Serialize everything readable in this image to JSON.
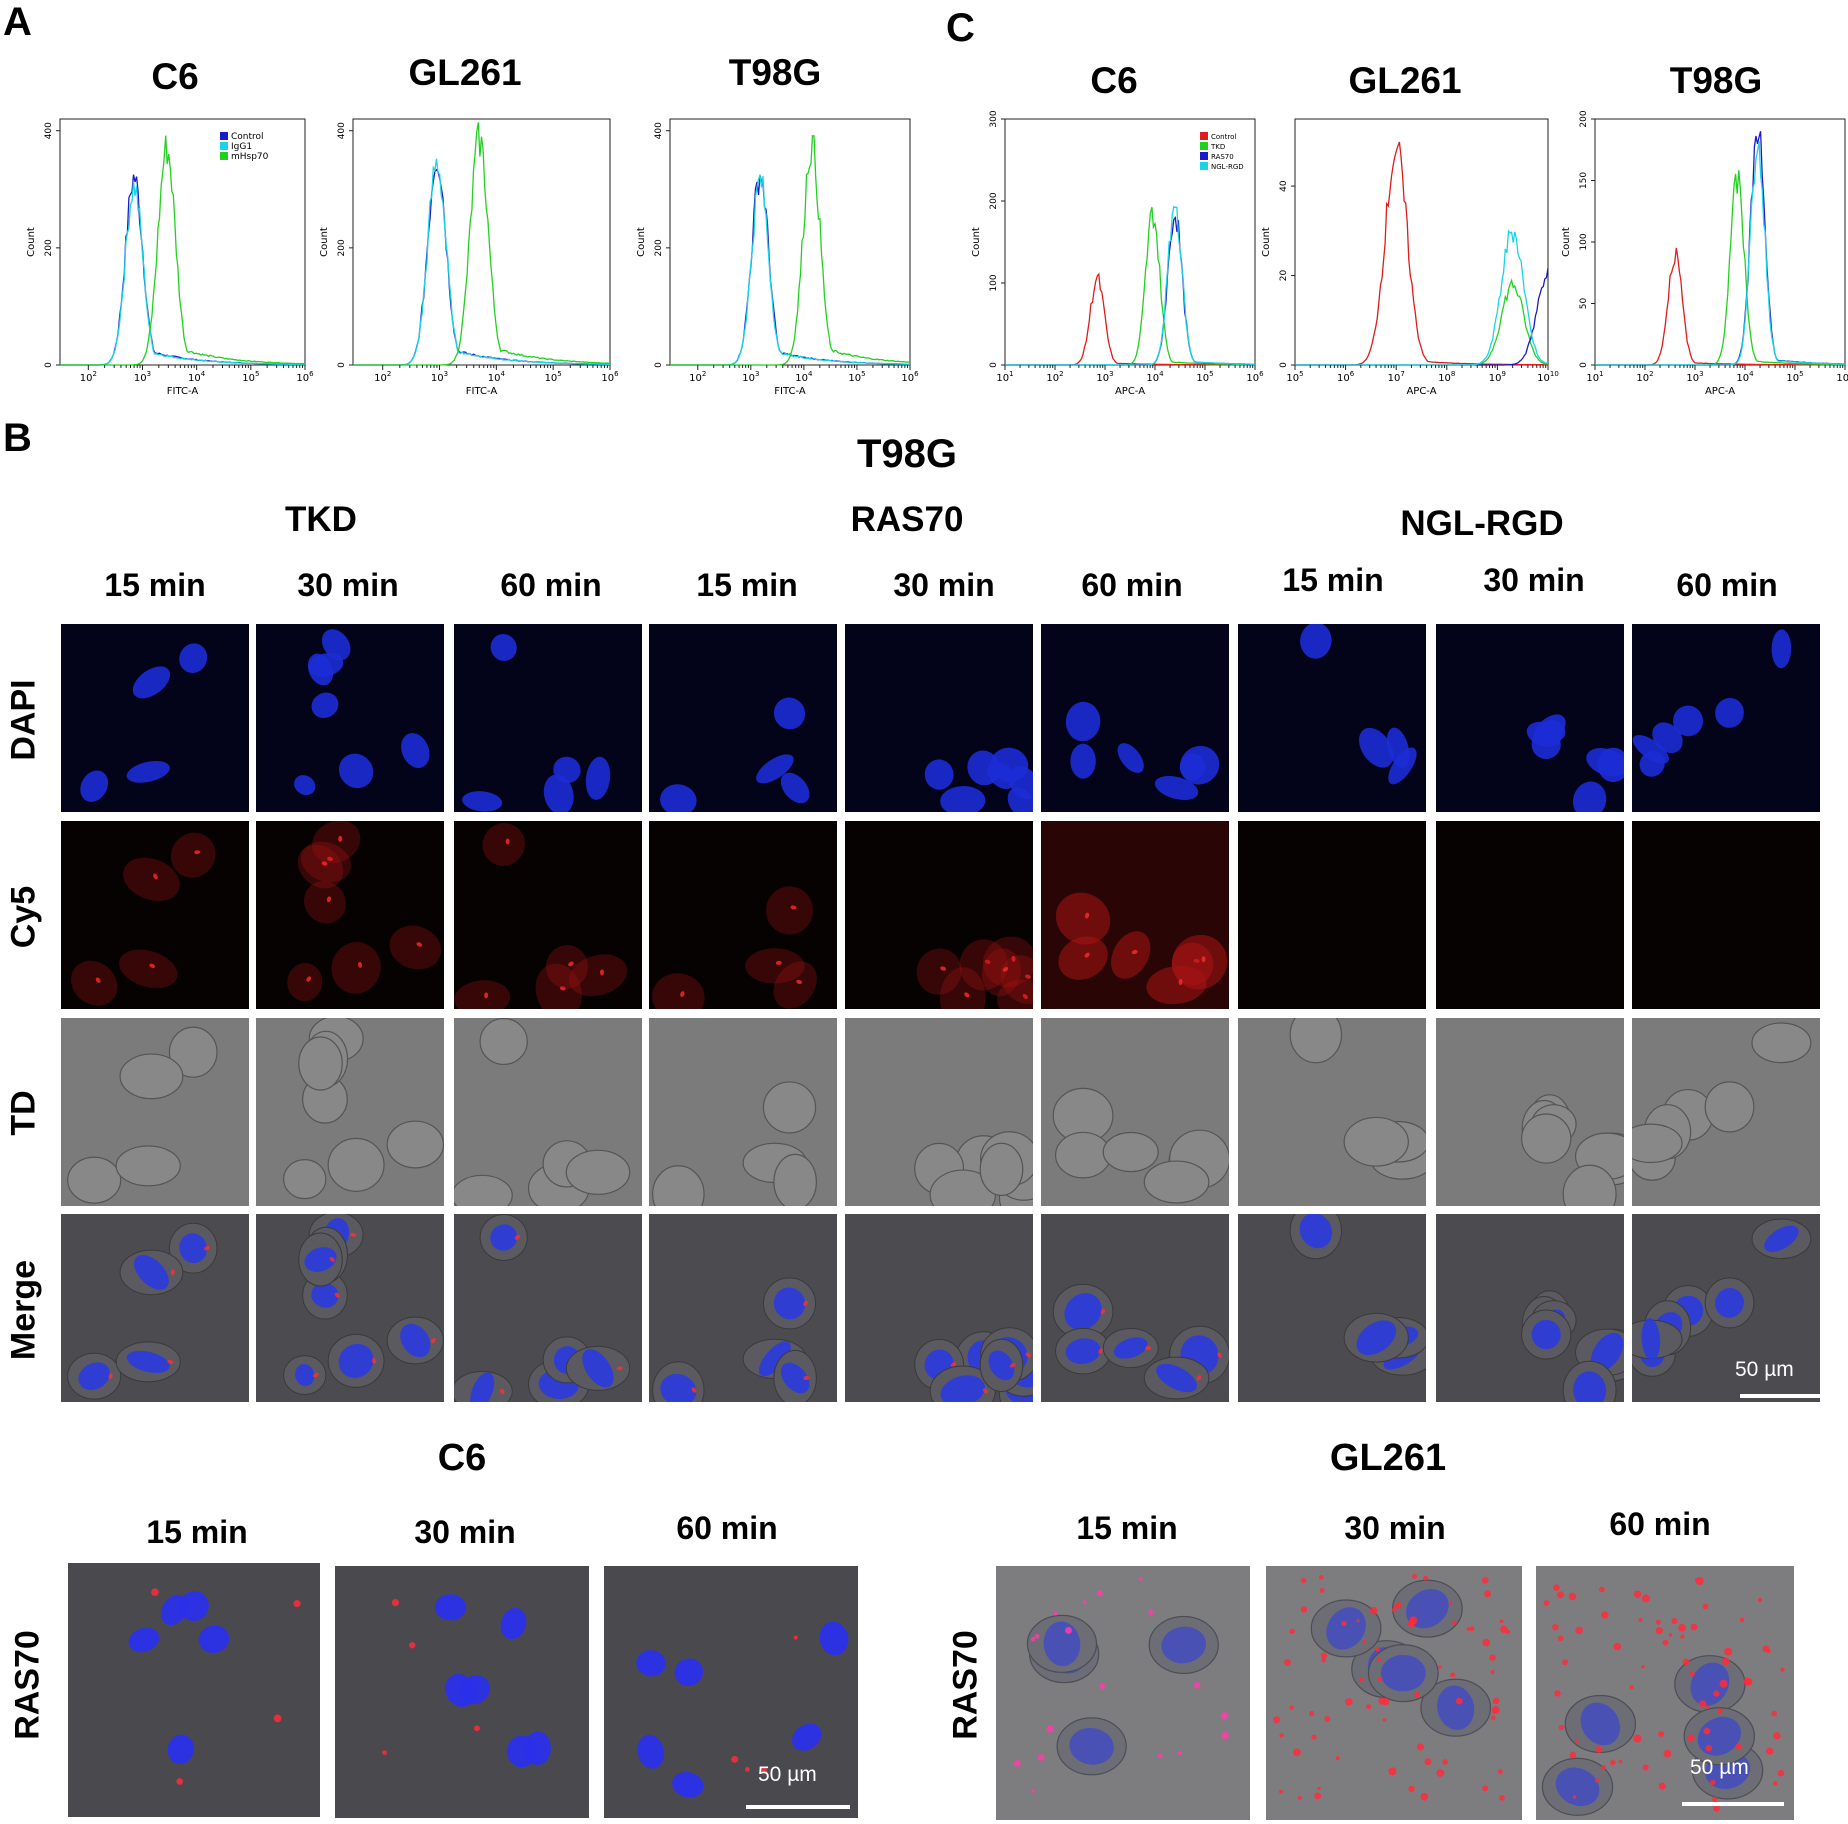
{
  "panels": {
    "a": "A",
    "b": "B",
    "c": "C"
  },
  "colors": {
    "control": "#1a1ac8",
    "igg1": "#19d4e6",
    "mhsp70": "#22d11f",
    "c_control": "#e01b1b",
    "c_tkd": "#22d11f",
    "c_ras70": "#1a1ac8",
    "c_ngl": "#19d4e6"
  },
  "panel_a": {
    "legend": [
      "Control",
      "IgG1",
      "mHsp70"
    ],
    "plots": [
      {
        "title": "C6",
        "xlabel": "FITC-A",
        "ylabel": "Count",
        "yticks": [
          "0",
          "200",
          "400"
        ]
      },
      {
        "title": "GL261",
        "xlabel": "FITC-A",
        "ylabel": "Count",
        "yticks": [
          "0",
          "200",
          "400"
        ]
      },
      {
        "title": "T98G",
        "xlabel": "FITC-A",
        "ylabel": "Count",
        "yticks": [
          "0",
          "200",
          "400"
        ]
      }
    ]
  },
  "panel_c": {
    "legend": [
      "Control",
      "TKD",
      "RAS70",
      "NGL-RGD"
    ],
    "plots": [
      {
        "title": "C6",
        "xlabel": "APC-A",
        "ylabel": "Count",
        "yticks": [
          "0",
          "100",
          "200",
          "300"
        ]
      },
      {
        "title": "GL261",
        "xlabel": "APC-A",
        "ylabel": "Count",
        "yticks": [
          "0",
          "20",
          "40"
        ]
      },
      {
        "title": "T98G",
        "xlabel": "APC-A",
        "ylabel": "Count",
        "yticks": [
          "0",
          "50",
          "100",
          "150",
          "200"
        ]
      }
    ]
  },
  "panel_b": {
    "title": "T98G",
    "groups": [
      "TKD",
      "RAS70",
      "NGL-RGD"
    ],
    "times": [
      "15 min",
      "30 min",
      "60 min",
      "15 min",
      "30 min",
      "60 min",
      "15 min",
      "30 min",
      "60 min"
    ],
    "rows": [
      "DAPI",
      "Cy5",
      "TD",
      "Merge"
    ],
    "scale": "50 µm"
  },
  "panel_bottom": {
    "left_title": "C6",
    "right_title": "GL261",
    "left_times": [
      "15 min",
      "30 min",
      "60 min"
    ],
    "right_times": [
      "15 min",
      "30 min",
      "60 min"
    ],
    "row": "RAS70",
    "scale": "50 µm"
  },
  "chart_data": [
    {
      "type": "area",
      "title": "C6",
      "xlabel": "FITC-A",
      "ylabel": "Count",
      "xscale": "log",
      "xlim": [
        30,
        1000000
      ],
      "ylim": [
        0,
        420
      ],
      "series": [
        {
          "name": "Control",
          "peak": 700,
          "height": 320
        },
        {
          "name": "IgG1",
          "peak": 700,
          "height": 305
        },
        {
          "name": "mHsp70",
          "peak": 2800,
          "height": 370
        }
      ]
    },
    {
      "type": "area",
      "title": "GL261",
      "xlabel": "FITC-A",
      "ylabel": "Count",
      "xscale": "log",
      "xlim": [
        30,
        1000000
      ],
      "ylim": [
        0,
        420
      ],
      "series": [
        {
          "name": "Control",
          "peak": 900,
          "height": 355
        },
        {
          "name": "IgG1",
          "peak": 900,
          "height": 345
        },
        {
          "name": "mHsp70",
          "peak": 5000,
          "height": 385
        }
      ]
    },
    {
      "type": "area",
      "title": "T98G",
      "xlabel": "FITC-A",
      "ylabel": "Count",
      "xscale": "log",
      "xlim": [
        30,
        1000000
      ],
      "ylim": [
        0,
        420
      ],
      "series": [
        {
          "name": "Control",
          "peak": 1500,
          "height": 325
        },
        {
          "name": "IgG1",
          "peak": 1500,
          "height": 315
        },
        {
          "name": "mHsp70",
          "peak": 14000,
          "height": 375
        }
      ]
    },
    {
      "type": "area",
      "title": "C6",
      "xlabel": "APC-A",
      "ylabel": "Count",
      "xscale": "log",
      "xlim": [
        10,
        1000000
      ],
      "ylim": [
        0,
        300
      ],
      "series": [
        {
          "name": "Control",
          "peak": 700,
          "height": 105
        },
        {
          "name": "TKD",
          "peak": 9000,
          "height": 185
        },
        {
          "name": "RAS70",
          "peak": 25000,
          "height": 185
        },
        {
          "name": "NGL-RGD",
          "peak": 25000,
          "height": 195
        }
      ]
    },
    {
      "type": "area",
      "title": "GL261",
      "xlabel": "APC-A",
      "ylabel": "Count",
      "xscale": "log",
      "xlim": [
        100000,
        10000000000
      ],
      "ylim": [
        0,
        55
      ],
      "series": [
        {
          "name": "Control",
          "peak": 10000000,
          "height": 48
        },
        {
          "name": "TKD",
          "peak": 2000000000,
          "height": 18
        },
        {
          "name": "RAS70",
          "peak": 10000000000,
          "height": 20
        },
        {
          "name": "NGL-RGD",
          "peak": 2000000000,
          "height": 30
        }
      ]
    },
    {
      "type": "area",
      "title": "T98G",
      "xlabel": "APC-A",
      "ylabel": "Count",
      "xscale": "log",
      "xlim": [
        10,
        1000000
      ],
      "ylim": [
        0,
        200
      ],
      "series": [
        {
          "name": "Control",
          "peak": 400,
          "height": 90
        },
        {
          "name": "TKD",
          "peak": 7000,
          "height": 150
        },
        {
          "name": "RAS70",
          "peak": 18000,
          "height": 195
        },
        {
          "name": "NGL-RGD",
          "peak": 18000,
          "height": 180
        }
      ]
    }
  ]
}
